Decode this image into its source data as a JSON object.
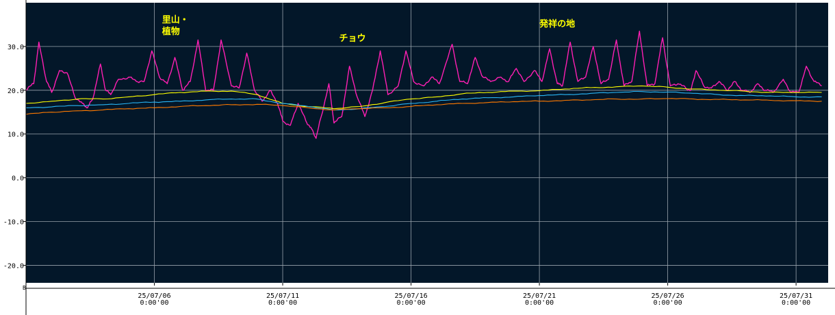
{
  "chart_data": {
    "type": "line",
    "title": "",
    "xlabel": "",
    "ylabel": "",
    "ylim": [
      -24,
      40
    ],
    "yticks": [
      "30.0",
      "20.0",
      "10.0",
      "0.0",
      "-10.0",
      "-20.0"
    ],
    "ytick_values": [
      30,
      20,
      10,
      0,
      -10,
      -20
    ],
    "x_range": [
      "2025-07-01 00:00",
      "2025-08-01 06:00"
    ],
    "xticks": [
      {
        "date": "25/07/06",
        "time": "0:00'00",
        "day": 6
      },
      {
        "date": "25/07/11",
        "time": "0:00'00",
        "day": 11
      },
      {
        "date": "25/07/16",
        "time": "0:00'00",
        "day": 16
      },
      {
        "date": "25/07/21",
        "time": "0:00'00",
        "day": 21
      },
      {
        "date": "25/07/26",
        "time": "0:00'00",
        "day": 26
      },
      {
        "date": "25/07/31",
        "time": "0:00'00",
        "day": 31
      }
    ],
    "grid": true,
    "background": "#031729",
    "grid_color": "#9aa4ad",
    "corner_label": "B",
    "annotations": [
      {
        "text": "里山・",
        "day": 6.3,
        "y": 35.5,
        "color": "#ffff00"
      },
      {
        "text": "植物",
        "day": 6.3,
        "y": 32.8,
        "color": "#ffff00"
      },
      {
        "text": "チョウ",
        "day": 13.2,
        "y": 31.2,
        "color": "#ffff00"
      },
      {
        "text": "発祥の地",
        "day": 21.0,
        "y": 34.5,
        "color": "#ffff00"
      }
    ],
    "series": [
      {
        "color": "#ff1fb4",
        "points": [
          [
            1.0,
            20.0
          ],
          [
            1.3,
            21.5
          ],
          [
            1.5,
            31.0
          ],
          [
            1.8,
            22.0
          ],
          [
            2.0,
            19.5
          ],
          [
            2.3,
            24.5
          ],
          [
            2.6,
            24.0
          ],
          [
            2.9,
            18.5
          ],
          [
            3.2,
            17.0
          ],
          [
            3.4,
            16.0
          ],
          [
            3.6,
            18.0
          ],
          [
            3.9,
            26.0
          ],
          [
            4.1,
            20.0
          ],
          [
            4.3,
            19.0
          ],
          [
            4.6,
            22.5
          ],
          [
            5.0,
            23.0
          ],
          [
            5.3,
            22.0
          ],
          [
            5.6,
            22.0
          ],
          [
            5.9,
            29.0
          ],
          [
            6.2,
            23.0
          ],
          [
            6.5,
            21.5
          ],
          [
            6.8,
            27.5
          ],
          [
            7.1,
            20.0
          ],
          [
            7.4,
            22.0
          ],
          [
            7.7,
            31.5
          ],
          [
            8.0,
            20.0
          ],
          [
            8.3,
            20.0
          ],
          [
            8.6,
            31.5
          ],
          [
            9.0,
            21.0
          ],
          [
            9.3,
            20.5
          ],
          [
            9.6,
            28.5
          ],
          [
            9.9,
            20.0
          ],
          [
            10.2,
            17.5
          ],
          [
            10.5,
            20.0
          ],
          [
            10.8,
            17.0
          ],
          [
            11.0,
            13.0
          ],
          [
            11.3,
            12.0
          ],
          [
            11.6,
            17.0
          ],
          [
            11.9,
            13.0
          ],
          [
            12.1,
            11.5
          ],
          [
            12.3,
            9.0
          ],
          [
            12.5,
            14.0
          ],
          [
            12.8,
            21.5
          ],
          [
            13.0,
            12.5
          ],
          [
            13.3,
            14.0
          ],
          [
            13.6,
            25.5
          ],
          [
            13.9,
            18.5
          ],
          [
            14.2,
            14.0
          ],
          [
            14.5,
            20.0
          ],
          [
            14.8,
            29.0
          ],
          [
            15.1,
            19.0
          ],
          [
            15.5,
            21.0
          ],
          [
            15.8,
            29.0
          ],
          [
            16.1,
            22.0
          ],
          [
            16.5,
            21.0
          ],
          [
            16.8,
            23.0
          ],
          [
            17.1,
            21.5
          ],
          [
            17.6,
            30.5
          ],
          [
            17.9,
            22.0
          ],
          [
            18.2,
            21.5
          ],
          [
            18.5,
            27.5
          ],
          [
            18.8,
            23.0
          ],
          [
            19.1,
            22.0
          ],
          [
            19.5,
            23.0
          ],
          [
            19.8,
            22.0
          ],
          [
            20.1,
            25.0
          ],
          [
            20.4,
            22.0
          ],
          [
            20.8,
            24.5
          ],
          [
            21.1,
            22.0
          ],
          [
            21.4,
            29.5
          ],
          [
            21.7,
            21.5
          ],
          [
            21.9,
            21.0
          ],
          [
            22.2,
            31.0
          ],
          [
            22.5,
            22.0
          ],
          [
            22.8,
            23.0
          ],
          [
            23.1,
            30.0
          ],
          [
            23.4,
            21.5
          ],
          [
            23.7,
            22.5
          ],
          [
            24.0,
            31.5
          ],
          [
            24.3,
            21.0
          ],
          [
            24.6,
            22.0
          ],
          [
            24.9,
            33.5
          ],
          [
            25.2,
            21.0
          ],
          [
            25.5,
            21.5
          ],
          [
            25.8,
            32.0
          ],
          [
            26.1,
            21.0
          ],
          [
            26.4,
            21.5
          ],
          [
            26.7,
            20.5
          ],
          [
            26.9,
            20.0
          ],
          [
            27.1,
            24.5
          ],
          [
            27.4,
            21.0
          ],
          [
            27.7,
            20.5
          ],
          [
            28.0,
            22.0
          ],
          [
            28.3,
            20.0
          ],
          [
            28.6,
            22.0
          ],
          [
            28.9,
            20.0
          ],
          [
            29.2,
            19.5
          ],
          [
            29.5,
            21.5
          ],
          [
            29.8,
            20.0
          ],
          [
            30.1,
            19.5
          ],
          [
            30.5,
            22.5
          ],
          [
            30.8,
            19.5
          ],
          [
            31.1,
            19.5
          ],
          [
            31.4,
            25.5
          ],
          [
            31.7,
            22.0
          ],
          [
            32.0,
            21.0
          ]
        ]
      },
      {
        "color": "#ffff00",
        "points": [
          [
            1.0,
            17.0
          ],
          [
            2.0,
            17.5
          ],
          [
            3.0,
            18.0
          ],
          [
            4.0,
            18.0
          ],
          [
            5.0,
            18.5
          ],
          [
            6.0,
            19.0
          ],
          [
            7.0,
            19.5
          ],
          [
            8.0,
            19.8
          ],
          [
            9.0,
            19.8
          ],
          [
            10.0,
            19.0
          ],
          [
            11.0,
            17.0
          ],
          [
            12.0,
            16.3
          ],
          [
            13.0,
            15.8
          ],
          [
            14.0,
            16.3
          ],
          [
            15.0,
            17.2
          ],
          [
            16.0,
            18.0
          ],
          [
            17.0,
            18.5
          ],
          [
            18.0,
            19.2
          ],
          [
            19.0,
            19.5
          ],
          [
            20.0,
            19.8
          ],
          [
            21.0,
            19.9
          ],
          [
            22.0,
            20.3
          ],
          [
            23.0,
            20.6
          ],
          [
            24.0,
            20.8
          ],
          [
            25.0,
            21.0
          ],
          [
            26.0,
            20.7
          ],
          [
            27.0,
            20.3
          ],
          [
            28.0,
            20.0
          ],
          [
            29.0,
            19.8
          ],
          [
            30.0,
            19.5
          ],
          [
            31.0,
            19.5
          ],
          [
            32.0,
            19.5
          ]
        ]
      },
      {
        "color": "#29b6f6",
        "points": [
          [
            1.0,
            16.0
          ],
          [
            2.0,
            16.2
          ],
          [
            3.0,
            16.5
          ],
          [
            4.0,
            16.7
          ],
          [
            5.0,
            17.0
          ],
          [
            6.0,
            17.3
          ],
          [
            7.0,
            17.5
          ],
          [
            8.0,
            17.8
          ],
          [
            9.0,
            18.0
          ],
          [
            10.0,
            18.0
          ],
          [
            11.0,
            17.0
          ],
          [
            12.0,
            16.3
          ],
          [
            13.0,
            15.5
          ],
          [
            14.0,
            15.8
          ],
          [
            15.0,
            16.3
          ],
          [
            16.0,
            17.0
          ],
          [
            17.0,
            17.5
          ],
          [
            18.0,
            18.0
          ],
          [
            19.0,
            18.3
          ],
          [
            20.0,
            18.5
          ],
          [
            21.0,
            18.8
          ],
          [
            22.0,
            19.0
          ],
          [
            23.0,
            19.3
          ],
          [
            24.0,
            19.5
          ],
          [
            25.0,
            19.7
          ],
          [
            26.0,
            19.6
          ],
          [
            27.0,
            19.3
          ],
          [
            28.0,
            19.0
          ],
          [
            29.0,
            18.8
          ],
          [
            30.0,
            18.7
          ],
          [
            31.0,
            18.5
          ],
          [
            32.0,
            18.5
          ]
        ]
      },
      {
        "color": "#ff7a00",
        "points": [
          [
            1.0,
            14.5
          ],
          [
            2.0,
            15.0
          ],
          [
            3.0,
            15.3
          ],
          [
            4.0,
            15.5
          ],
          [
            5.0,
            15.8
          ],
          [
            6.0,
            16.0
          ],
          [
            7.0,
            16.3
          ],
          [
            8.0,
            16.5
          ],
          [
            9.0,
            16.7
          ],
          [
            10.0,
            16.8
          ],
          [
            11.0,
            16.5
          ],
          [
            12.0,
            16.0
          ],
          [
            13.0,
            15.5
          ],
          [
            14.0,
            15.8
          ],
          [
            15.0,
            16.0
          ],
          [
            16.0,
            16.3
          ],
          [
            17.0,
            16.7
          ],
          [
            18.0,
            17.0
          ],
          [
            19.0,
            17.2
          ],
          [
            20.0,
            17.4
          ],
          [
            21.0,
            17.5
          ],
          [
            22.0,
            17.7
          ],
          [
            23.0,
            17.8
          ],
          [
            24.0,
            18.0
          ],
          [
            25.0,
            18.0
          ],
          [
            26.0,
            18.1
          ],
          [
            27.0,
            18.0
          ],
          [
            28.0,
            17.9
          ],
          [
            29.0,
            17.8
          ],
          [
            30.0,
            17.7
          ],
          [
            31.0,
            17.6
          ],
          [
            32.0,
            17.5
          ]
        ]
      }
    ]
  }
}
